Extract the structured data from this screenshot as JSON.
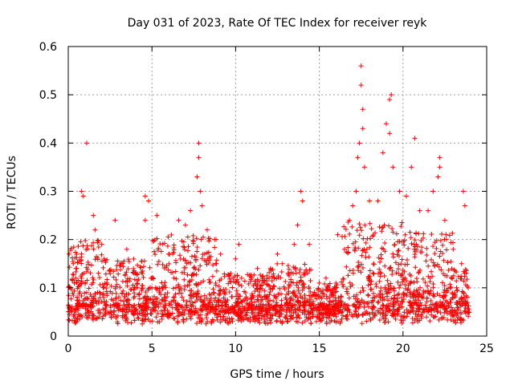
{
  "chart_data": {
    "type": "scatter",
    "title": "Day 031 of 2023, Rate Of TEC Index for receiver reyk",
    "xlabel": "GPS time / hours",
    "ylabel": "ROTI / TECUs",
    "xlim": [
      0,
      25
    ],
    "ylim": [
      0,
      0.6
    ],
    "xticks": [
      "0",
      "5",
      "10",
      "15",
      "20",
      "25"
    ],
    "yticks": [
      "0",
      "0.1",
      "0.2",
      "0.3",
      "0.4",
      "0.5",
      "0.6"
    ],
    "grid": true,
    "marker": "+",
    "color": "#ff0000",
    "series": [
      {
        "name": "ROTI",
        "points": [
          [
            0.05,
            0.17
          ],
          [
            0.3,
            0.15
          ],
          [
            0.5,
            0.14
          ],
          [
            0.8,
            0.3
          ],
          [
            0.9,
            0.29
          ],
          [
            1.1,
            0.4
          ],
          [
            1.5,
            0.25
          ],
          [
            1.6,
            0.22
          ],
          [
            2.0,
            0.19
          ],
          [
            2.8,
            0.24
          ],
          [
            3.5,
            0.18
          ],
          [
            4.6,
            0.29
          ],
          [
            4.8,
            0.28
          ],
          [
            4.6,
            0.24
          ],
          [
            5.3,
            0.25
          ],
          [
            6.0,
            0.17
          ],
          [
            6.6,
            0.24
          ],
          [
            7.0,
            0.23
          ],
          [
            7.3,
            0.26
          ],
          [
            7.7,
            0.33
          ],
          [
            7.8,
            0.4
          ],
          [
            7.8,
            0.37
          ],
          [
            7.9,
            0.3
          ],
          [
            8.0,
            0.27
          ],
          [
            8.3,
            0.22
          ],
          [
            9.1,
            0.17
          ],
          [
            10.2,
            0.19
          ],
          [
            10.0,
            0.16
          ],
          [
            11.3,
            0.14
          ],
          [
            12.0,
            0.12
          ],
          [
            12.5,
            0.17
          ],
          [
            12.8,
            0.15
          ],
          [
            13.5,
            0.19
          ],
          [
            13.7,
            0.23
          ],
          [
            13.9,
            0.3
          ],
          [
            14.0,
            0.28
          ],
          [
            14.4,
            0.19
          ],
          [
            15.0,
            0.11
          ],
          [
            15.4,
            0.12
          ],
          [
            16.1,
            0.21
          ],
          [
            16.5,
            0.18
          ],
          [
            16.8,
            0.24
          ],
          [
            17.0,
            0.27
          ],
          [
            17.2,
            0.3
          ],
          [
            17.3,
            0.37
          ],
          [
            17.4,
            0.4
          ],
          [
            17.5,
            0.56
          ],
          [
            17.5,
            0.52
          ],
          [
            17.6,
            0.47
          ],
          [
            17.6,
            0.43
          ],
          [
            17.7,
            0.35
          ],
          [
            18.0,
            0.28
          ],
          [
            18.5,
            0.28
          ],
          [
            18.8,
            0.38
          ],
          [
            19.0,
            0.44
          ],
          [
            19.2,
            0.42
          ],
          [
            19.2,
            0.49
          ],
          [
            19.3,
            0.5
          ],
          [
            19.4,
            0.35
          ],
          [
            19.8,
            0.3
          ],
          [
            20.2,
            0.29
          ],
          [
            20.5,
            0.35
          ],
          [
            20.7,
            0.41
          ],
          [
            21.0,
            0.26
          ],
          [
            21.5,
            0.26
          ],
          [
            21.8,
            0.3
          ],
          [
            22.1,
            0.33
          ],
          [
            22.2,
            0.35
          ],
          [
            22.2,
            0.37
          ],
          [
            22.5,
            0.24
          ],
          [
            23.0,
            0.18
          ],
          [
            23.5,
            0.15
          ],
          [
            23.6,
            0.3
          ],
          [
            23.7,
            0.27
          ],
          [
            23.9,
            0.1
          ]
        ]
      }
    ]
  }
}
